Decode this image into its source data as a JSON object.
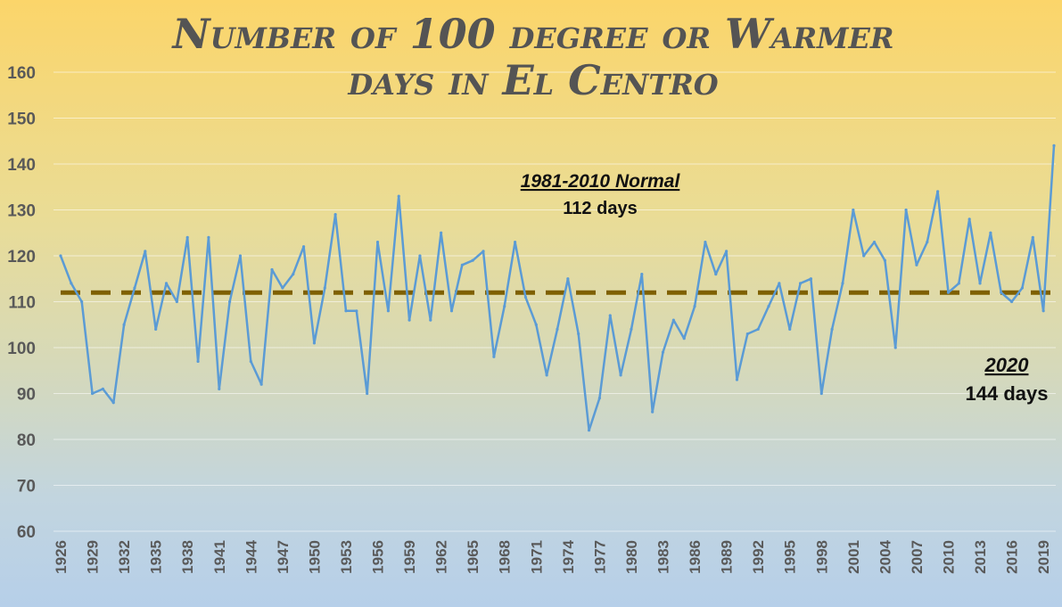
{
  "chart_data": {
    "type": "line",
    "title_lines": [
      "Number of 100 degree or Warmer",
      "days in El Centro"
    ],
    "x_start": 1926,
    "x_end": 2020,
    "x_tick_labels": [
      "1926",
      "1929",
      "1932",
      "1935",
      "1938",
      "1941",
      "1944",
      "1947",
      "1950",
      "1953",
      "1956",
      "1959",
      "1962",
      "1965",
      "1968",
      "1971",
      "1974",
      "1977",
      "1980",
      "1983",
      "1986",
      "1989",
      "1992",
      "1995",
      "1998",
      "2001",
      "2004",
      "2007",
      "2010",
      "2013",
      "2016",
      "2019"
    ],
    "ylim": [
      60,
      160
    ],
    "y_ticks": [
      60,
      70,
      80,
      90,
      100,
      110,
      120,
      130,
      140,
      150,
      160
    ],
    "grid": true,
    "series": [
      {
        "color": "#5b9bd5",
        "values": [
          120,
          114,
          110,
          90,
          91,
          88,
          105,
          113,
          121,
          104,
          114,
          110,
          124,
          97,
          124,
          91,
          110,
          120,
          97,
          92,
          117,
          113,
          116,
          122,
          101,
          113,
          129,
          108,
          108,
          90,
          123,
          108,
          133,
          106,
          120,
          106,
          125,
          108,
          118,
          119,
          121,
          98,
          109,
          123,
          111,
          105,
          94,
          104,
          115,
          103,
          82,
          89,
          107,
          94,
          104,
          116,
          86,
          99,
          106,
          102,
          109,
          123,
          116,
          121,
          93,
          103,
          104,
          109,
          114,
          104,
          114,
          115,
          90,
          104,
          114,
          130,
          120,
          123,
          119,
          100,
          130,
          118,
          123,
          134,
          112,
          114,
          128,
          114,
          125,
          112,
          110,
          113,
          124,
          108,
          144
        ]
      }
    ],
    "normal_line": {
      "value": 112,
      "color": "#7f6000"
    },
    "annotations": {
      "normal_title": "1981-2010 Normal",
      "normal_value": "112 days",
      "latest_title": "2020",
      "latest_value": "144 days"
    }
  }
}
